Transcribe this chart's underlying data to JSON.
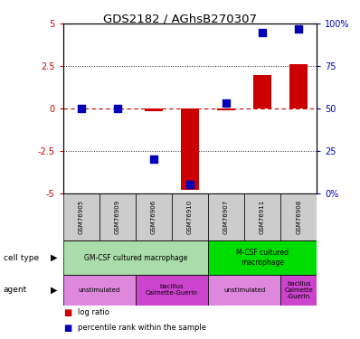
{
  "title": "GDS2182 / AGhsB270307",
  "samples": [
    "GSM76905",
    "GSM76909",
    "GSM76906",
    "GSM76910",
    "GSM76907",
    "GSM76911",
    "GSM76908"
  ],
  "log_ratio": [
    0.0,
    0.0,
    -0.15,
    -4.8,
    -0.1,
    2.0,
    2.6
  ],
  "percentile": [
    50,
    50,
    20,
    5,
    53,
    95,
    97
  ],
  "ylim_left": [
    -5,
    5
  ],
  "ylim_right": [
    0,
    100
  ],
  "yticks_left": [
    -5,
    -2.5,
    0,
    2.5,
    5
  ],
  "ytick_labels_left": [
    "-5",
    "-2.5",
    "0",
    "2.5",
    "5"
  ],
  "yticks_right": [
    0,
    25,
    50,
    75,
    100
  ],
  "ytick_labels_right": [
    "0%",
    "25",
    "50",
    "75",
    "100%"
  ],
  "bar_color": "#cc0000",
  "dot_color": "#0000bb",
  "zero_line_color": "#cc0000",
  "dotted_line_color": "#222222",
  "cell_type_groups": [
    {
      "label": "GM-CSF cultured macrophage",
      "start": 0,
      "end": 3,
      "color": "#aaddaa"
    },
    {
      "label": "M-CSF cultured\nmacrophage",
      "start": 4,
      "end": 6,
      "color": "#00dd00"
    }
  ],
  "agent_groups": [
    {
      "label": "unstimulated",
      "start": 0,
      "end": 1,
      "color": "#dd88dd"
    },
    {
      "label": "bacillus\nCalmette-Guerin",
      "start": 2,
      "end": 3,
      "color": "#cc44cc"
    },
    {
      "label": "unstimulated",
      "start": 4,
      "end": 5,
      "color": "#dd88dd"
    },
    {
      "label": "bacillus\nCalmette\n-Guerin",
      "start": 6,
      "end": 6,
      "color": "#cc44cc"
    }
  ],
  "bar_width": 0.5,
  "dot_size": 30,
  "background_color": "#ffffff",
  "tick_label_color_left": "#cc0000",
  "tick_label_color_right": "#0000bb",
  "sample_box_color": "#cccccc",
  "legend_red_label": "log ratio",
  "legend_blue_label": "percentile rank within the sample"
}
